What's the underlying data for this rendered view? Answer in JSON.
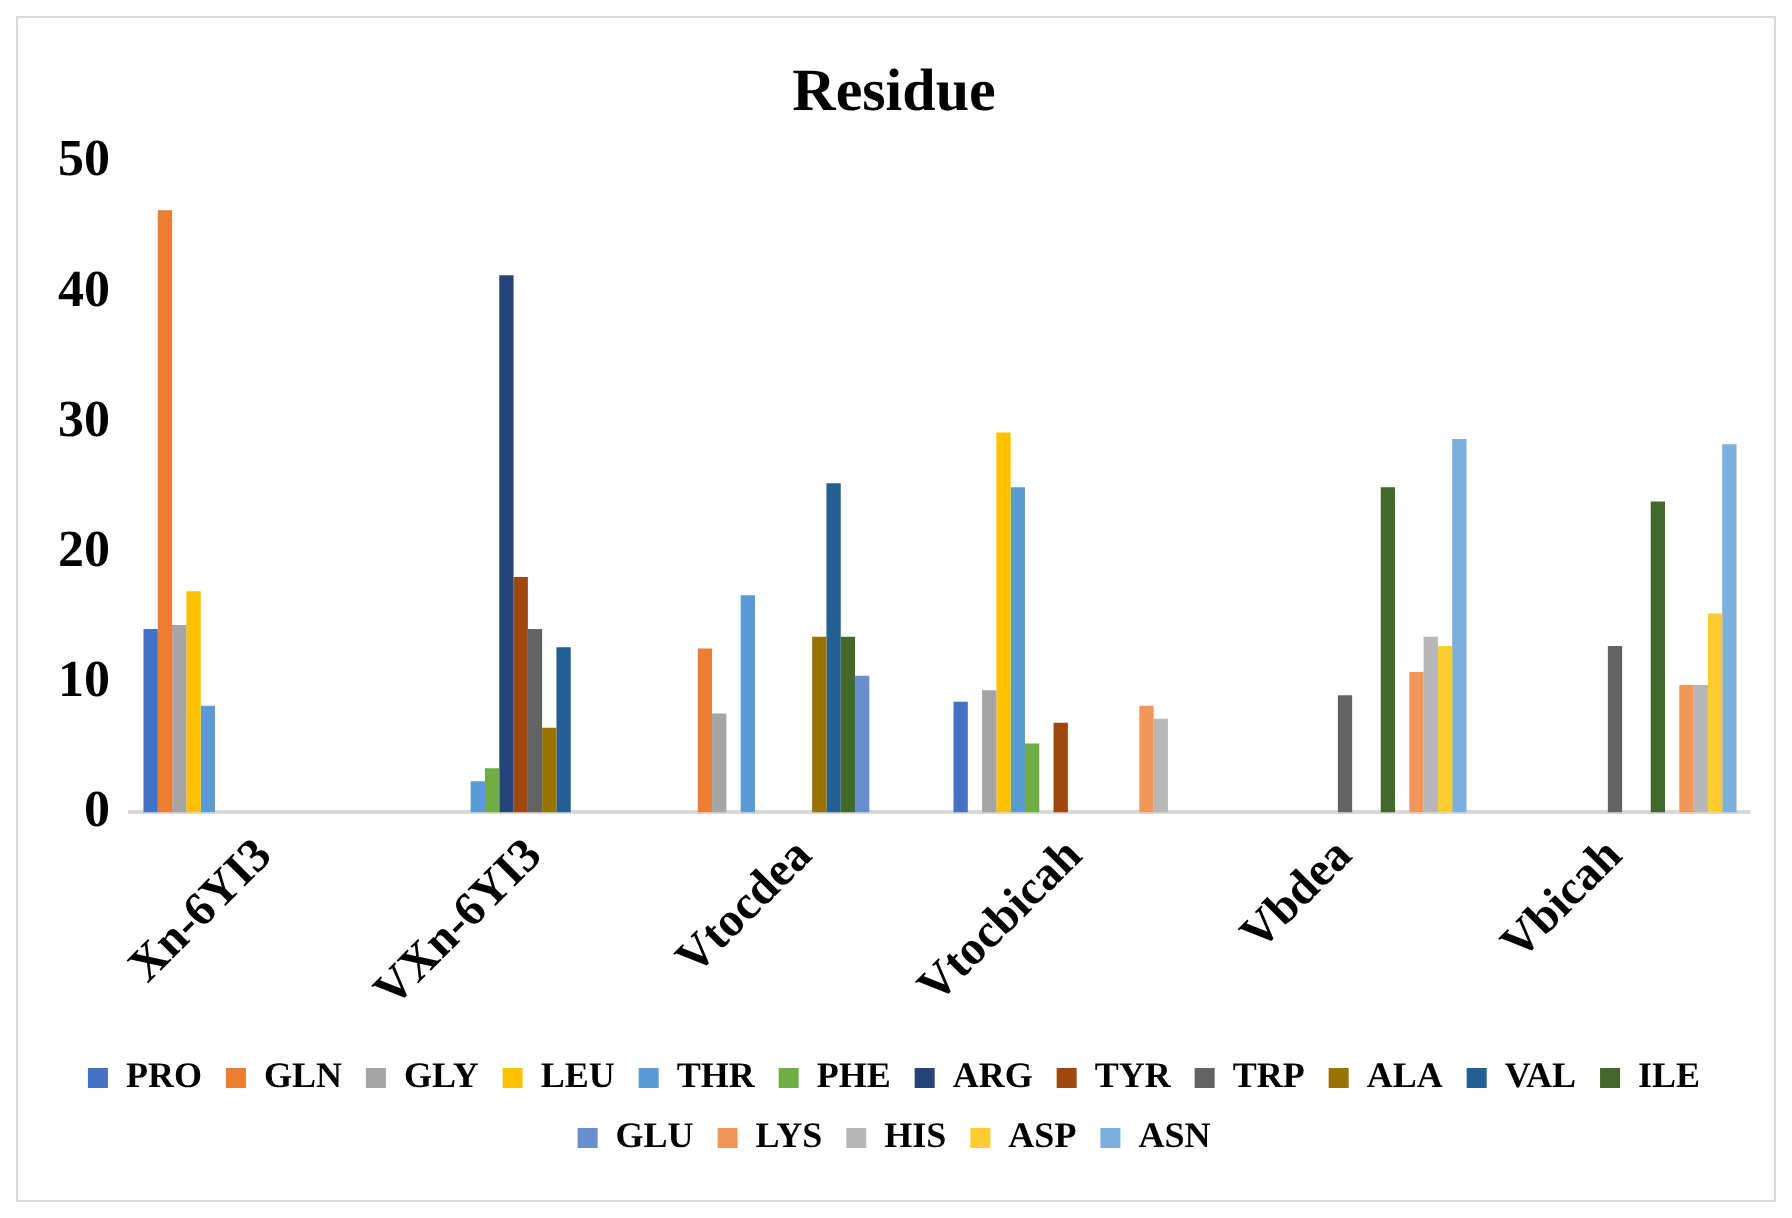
{
  "chart_data": {
    "type": "bar",
    "title": "Residue",
    "categories": [
      "Xn-6YI3",
      "VXn-6YI3",
      "Vtocdea",
      "Vtocbicah",
      "Vbdea",
      "Vbicah"
    ],
    "series": [
      {
        "name": "PRO",
        "color": "#4472c4",
        "values": [
          14.1,
          null,
          null,
          8.5,
          null,
          null
        ]
      },
      {
        "name": "GLN",
        "color": "#ed7d31",
        "values": [
          46.3,
          null,
          12.6,
          null,
          null,
          null
        ]
      },
      {
        "name": "GLY",
        "color": "#a5a5a5",
        "values": [
          14.4,
          null,
          7.6,
          9.4,
          null,
          null
        ]
      },
      {
        "name": "LEU",
        "color": "#ffc000",
        "values": [
          17.0,
          null,
          null,
          29.2,
          null,
          null
        ]
      },
      {
        "name": "THR",
        "color": "#5b9bd5",
        "values": [
          8.2,
          2.4,
          16.7,
          25.0,
          null,
          null
        ]
      },
      {
        "name": "PHE",
        "color": "#70ad47",
        "values": [
          null,
          3.4,
          null,
          5.3,
          null,
          null
        ]
      },
      {
        "name": "ARG",
        "color": "#264478",
        "values": [
          null,
          41.3,
          null,
          null,
          null,
          null
        ]
      },
      {
        "name": "TYR",
        "color": "#9e480e",
        "values": [
          null,
          18.1,
          null,
          6.9,
          null,
          null
        ]
      },
      {
        "name": "TRP",
        "color": "#636363",
        "values": [
          null,
          14.1,
          null,
          null,
          9.0,
          12.8
        ]
      },
      {
        "name": "ALA",
        "color": "#997300",
        "values": [
          null,
          6.5,
          13.5,
          null,
          null,
          null
        ]
      },
      {
        "name": "VAL",
        "color": "#255e91",
        "values": [
          null,
          12.7,
          25.3,
          null,
          null,
          null
        ]
      },
      {
        "name": "ILE",
        "color": "#43682b",
        "values": [
          null,
          null,
          13.5,
          null,
          25.0,
          23.9
        ]
      },
      {
        "name": "GLU",
        "color": "#698ed0",
        "values": [
          null,
          null,
          10.5,
          null,
          null,
          null
        ]
      },
      {
        "name": "LYS",
        "color": "#f1975a",
        "values": [
          null,
          null,
          null,
          8.2,
          10.8,
          9.8
        ]
      },
      {
        "name": "HIS",
        "color": "#b7b7b7",
        "values": [
          null,
          null,
          null,
          7.2,
          13.5,
          9.8
        ]
      },
      {
        "name": "ASP",
        "color": "#ffcd33",
        "values": [
          null,
          null,
          null,
          null,
          12.8,
          15.3
        ]
      },
      {
        "name": "ASN",
        "color": "#7cafdd",
        "values": [
          null,
          null,
          null,
          null,
          28.7,
          28.3
        ]
      }
    ],
    "ylim": [
      0,
      50
    ],
    "yticks": [
      0,
      10,
      20,
      30,
      40,
      50
    ],
    "grid": false,
    "legend": "bottom"
  }
}
